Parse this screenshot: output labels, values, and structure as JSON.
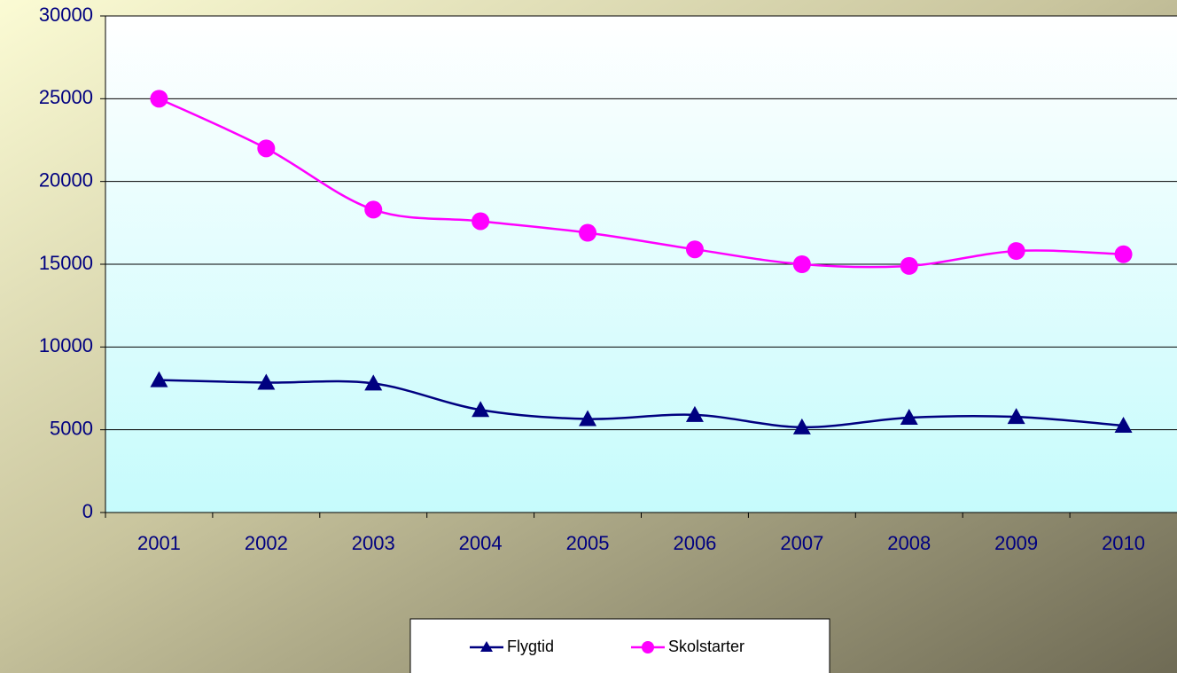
{
  "chart_data": {
    "type": "line",
    "categories": [
      "2001",
      "2002",
      "2003",
      "2004",
      "2005",
      "2006",
      "2007",
      "2008",
      "2009",
      "2010"
    ],
    "series": [
      {
        "name": "Flygtid",
        "color": "#000080",
        "marker": "triangle",
        "values": [
          8000,
          7850,
          7800,
          6200,
          5650,
          5900,
          5150,
          5730,
          5780,
          5250
        ]
      },
      {
        "name": "Skolstarter",
        "color": "#ff00ff",
        "marker": "circle",
        "values": [
          25000,
          22000,
          18300,
          17600,
          16900,
          15900,
          15000,
          14900,
          15800,
          15600
        ]
      }
    ],
    "ylim": [
      0,
      30000
    ],
    "yticks": [
      0,
      5000,
      10000,
      15000,
      20000,
      25000,
      30000
    ],
    "grid": true,
    "legend": "bottom"
  }
}
